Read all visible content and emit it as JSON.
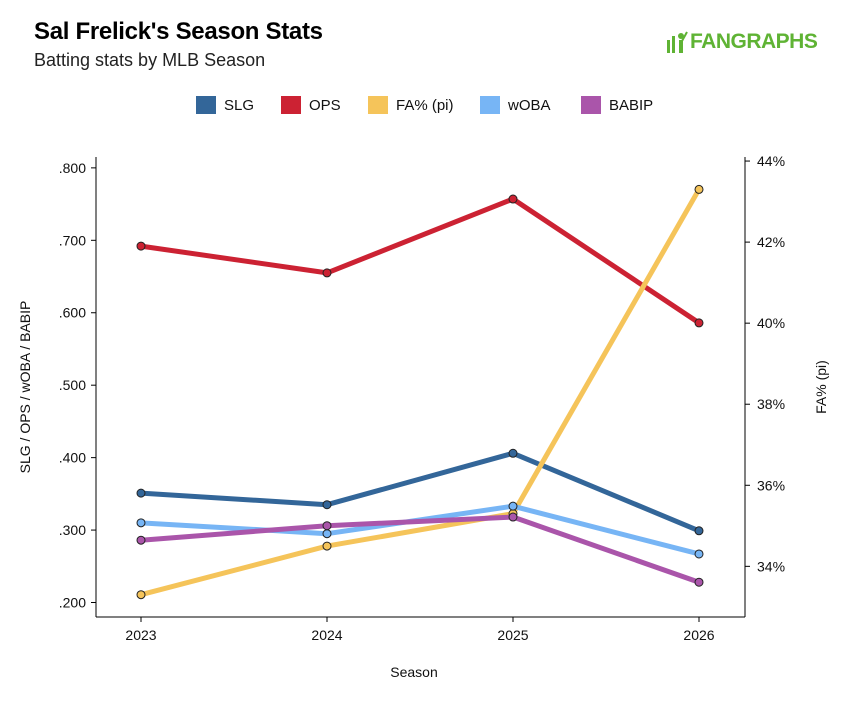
{
  "header": {
    "title": "Sal Frelick's Season Stats",
    "subtitle": "Batting stats by MLB Season",
    "logo_text": "FANGRAPHS",
    "logo_color": "#5fb334"
  },
  "chart_data": {
    "type": "line",
    "x": [
      "2023",
      "2024",
      "2025",
      "2026"
    ],
    "xlabel": "Season",
    "ylabel": "SLG / OPS / wOBA / BABIP",
    "y2label": "FA% (pi)",
    "ylim": [
      0.18,
      0.815
    ],
    "y_ticks": [
      ".200",
      ".300",
      ".400",
      ".500",
      ".600",
      ".700",
      ".800"
    ],
    "y2lim": [
      32.75,
      44.1
    ],
    "y2_ticks": [
      "34%",
      "36%",
      "38%",
      "40%",
      "42%",
      "44%"
    ],
    "legend_position": "top",
    "grid": false,
    "series": [
      {
        "name": "SLG",
        "axis": "left",
        "color": "#336699",
        "values": [
          0.351,
          0.335,
          0.406,
          0.299
        ]
      },
      {
        "name": "OPS",
        "axis": "left",
        "color": "#cc2233",
        "values": [
          0.692,
          0.655,
          0.757,
          0.586
        ]
      },
      {
        "name": "FA% (pi)",
        "axis": "right",
        "color": "#f5c45a",
        "values": [
          33.3,
          34.5,
          35.3,
          43.3
        ]
      },
      {
        "name": "wOBA",
        "axis": "left",
        "color": "#77b5f5",
        "values": [
          0.31,
          0.295,
          0.333,
          0.267
        ]
      },
      {
        "name": "BABIP",
        "axis": "left",
        "color": "#aa55aa",
        "values": [
          0.286,
          0.306,
          0.318,
          0.228
        ]
      }
    ]
  }
}
